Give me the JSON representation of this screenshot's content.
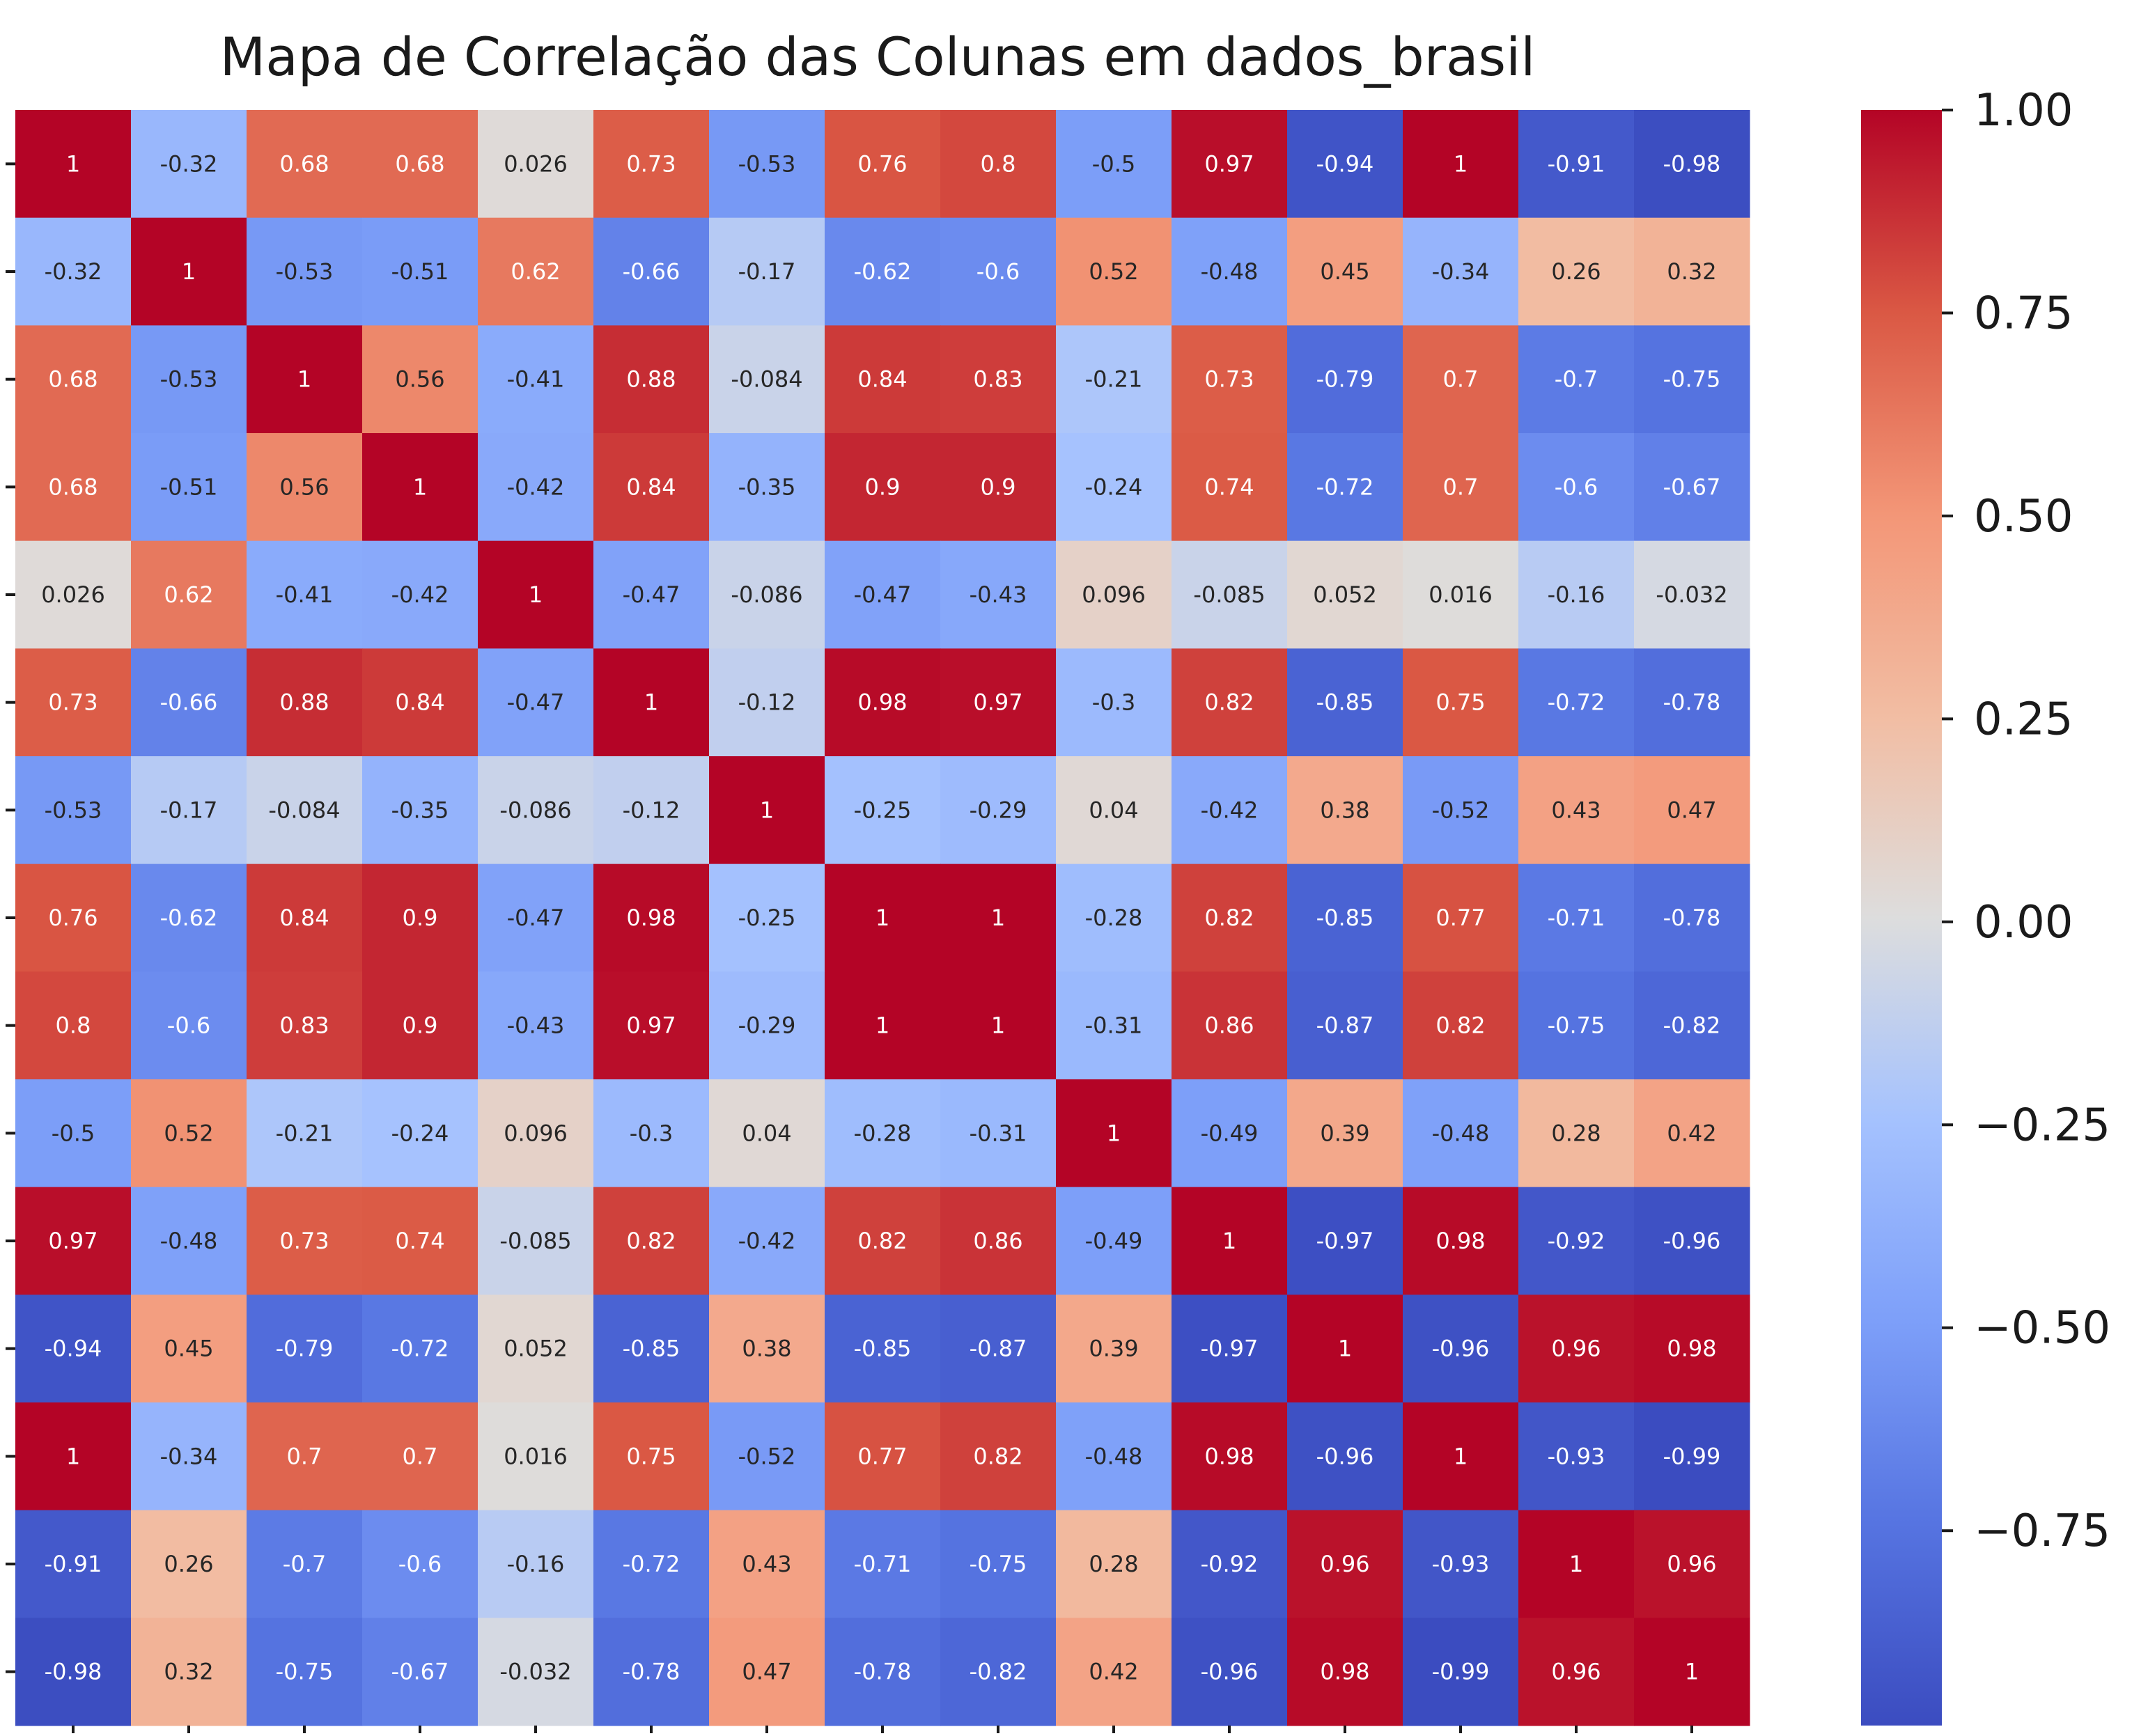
{
  "chart_data": {
    "type": "heatmap",
    "title": "Mapa de Correlação das Colunas em dados_brasil",
    "xlabel": "",
    "ylabel": "",
    "x_tick_labels": [
      "",
      "",
      "",
      "",
      "",
      "",
      "",
      "",
      "",
      "",
      "",
      "",
      "",
      "",
      ""
    ],
    "y_tick_labels": [
      "",
      "",
      "",
      "",
      "",
      "",
      "",
      "",
      "",
      "",
      "",
      "",
      "",
      "",
      ""
    ],
    "colormap": "coolwarm",
    "color_range": [
      -0.99,
      1.0
    ],
    "colorbar": {
      "ticks": [
        1.0,
        0.75,
        0.5,
        0.25,
        0.0,
        -0.25,
        -0.5,
        -0.75
      ],
      "tick_labels": [
        "1.00",
        "0.75",
        "0.50",
        "0.25",
        "0.00",
        "−0.25",
        "−0.50",
        "−0.75"
      ]
    },
    "annotation_colors": {
      "dark": "#262626",
      "light": "#ffffff"
    },
    "matrix": [
      [
        1,
        -0.32,
        0.68,
        0.68,
        0.026,
        0.73,
        -0.53,
        0.76,
        0.8,
        -0.5,
        0.97,
        -0.94,
        1,
        -0.91,
        -0.98
      ],
      [
        -0.32,
        1,
        -0.53,
        -0.51,
        0.62,
        -0.66,
        -0.17,
        -0.62,
        -0.6,
        0.52,
        -0.48,
        0.45,
        -0.34,
        0.26,
        0.32
      ],
      [
        0.68,
        -0.53,
        1,
        0.56,
        -0.41,
        0.88,
        -0.084,
        0.84,
        0.83,
        -0.21,
        0.73,
        -0.79,
        0.7,
        -0.7,
        -0.75
      ],
      [
        0.68,
        -0.51,
        0.56,
        1,
        -0.42,
        0.84,
        -0.35,
        0.9,
        0.9,
        -0.24,
        0.74,
        -0.72,
        0.7,
        -0.6,
        -0.67
      ],
      [
        0.026,
        0.62,
        -0.41,
        -0.42,
        1,
        -0.47,
        -0.086,
        -0.47,
        -0.43,
        0.096,
        -0.085,
        0.052,
        0.016,
        -0.16,
        -0.032
      ],
      [
        0.73,
        -0.66,
        0.88,
        0.84,
        -0.47,
        1,
        -0.12,
        0.98,
        0.97,
        -0.3,
        0.82,
        -0.85,
        0.75,
        -0.72,
        -0.78
      ],
      [
        -0.53,
        -0.17,
        -0.084,
        -0.35,
        -0.086,
        -0.12,
        1,
        -0.25,
        -0.29,
        0.04,
        -0.42,
        0.38,
        -0.52,
        0.43,
        0.47
      ],
      [
        0.76,
        -0.62,
        0.84,
        0.9,
        -0.47,
        0.98,
        -0.25,
        1,
        1,
        -0.28,
        0.82,
        -0.85,
        0.77,
        -0.71,
        -0.78
      ],
      [
        0.8,
        -0.6,
        0.83,
        0.9,
        -0.43,
        0.97,
        -0.29,
        1,
        1,
        -0.31,
        0.86,
        -0.87,
        0.82,
        -0.75,
        -0.82
      ],
      [
        -0.5,
        0.52,
        -0.21,
        -0.24,
        0.096,
        -0.3,
        0.04,
        -0.28,
        -0.31,
        1,
        -0.49,
        0.39,
        -0.48,
        0.28,
        0.42
      ],
      [
        0.97,
        -0.48,
        0.73,
        0.74,
        -0.085,
        0.82,
        -0.42,
        0.82,
        0.86,
        -0.49,
        1,
        -0.97,
        0.98,
        -0.92,
        -0.96
      ],
      [
        -0.94,
        0.45,
        -0.79,
        -0.72,
        0.052,
        -0.85,
        0.38,
        -0.85,
        -0.87,
        0.39,
        -0.97,
        1,
        -0.96,
        0.96,
        0.98
      ],
      [
        1,
        -0.34,
        0.7,
        0.7,
        0.016,
        0.75,
        -0.52,
        0.77,
        0.82,
        -0.48,
        0.98,
        -0.96,
        1,
        -0.93,
        -0.99
      ],
      [
        -0.91,
        0.26,
        -0.7,
        -0.6,
        -0.16,
        -0.72,
        0.43,
        -0.71,
        -0.75,
        0.28,
        -0.92,
        0.96,
        -0.93,
        1,
        0.96
      ],
      [
        -0.98,
        0.32,
        -0.75,
        -0.67,
        -0.032,
        -0.78,
        0.47,
        -0.78,
        -0.82,
        0.42,
        -0.96,
        0.98,
        -0.99,
        0.96,
        1
      ]
    ]
  }
}
